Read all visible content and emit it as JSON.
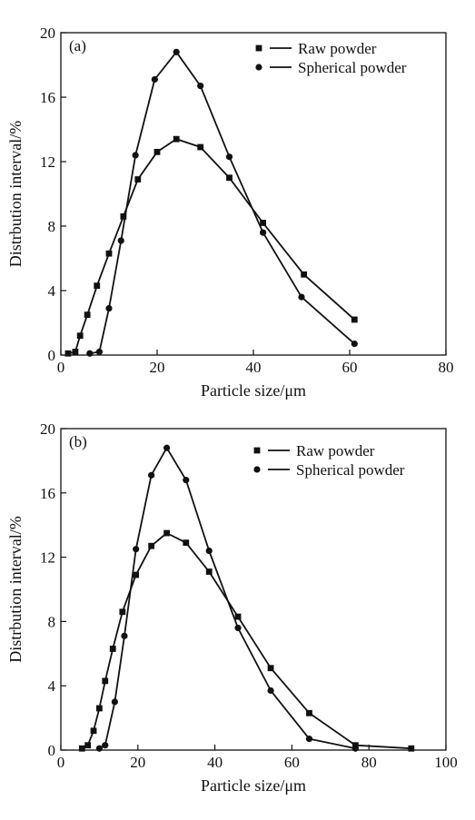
{
  "chart_data": [
    {
      "type": "line",
      "panel_label": "(a)",
      "xlabel": "Particle size/μm",
      "ylabel": "Distrbution interval/%",
      "xlim": [
        0,
        80
      ],
      "ylim": [
        0,
        20
      ],
      "xticks": [
        0,
        20,
        40,
        60,
        80
      ],
      "yticks": [
        0,
        4,
        8,
        12,
        16,
        20
      ],
      "legend": "top-right",
      "grid": false,
      "series": [
        {
          "name": "Raw powder",
          "marker": "square",
          "points": [
            [
              1.5,
              0.1
            ],
            [
              3,
              0.2
            ],
            [
              4,
              1.2
            ],
            [
              5.5,
              2.5
            ],
            [
              7.5,
              4.3
            ],
            [
              10,
              6.3
            ],
            [
              13,
              8.6
            ],
            [
              16,
              10.9
            ],
            [
              20,
              12.6
            ],
            [
              24,
              13.4
            ],
            [
              29,
              12.9
            ],
            [
              35,
              11.0
            ],
            [
              42,
              8.2
            ],
            [
              50.5,
              5.0
            ],
            [
              61,
              2.2
            ]
          ]
        },
        {
          "name": "Spherical powder",
          "marker": "circle",
          "points": [
            [
              6,
              0.1
            ],
            [
              8,
              0.2
            ],
            [
              10,
              2.9
            ],
            [
              12.5,
              7.1
            ],
            [
              15.5,
              12.4
            ],
            [
              19.5,
              17.1
            ],
            [
              24,
              18.8
            ],
            [
              29,
              16.7
            ],
            [
              35,
              12.3
            ],
            [
              42,
              7.6
            ],
            [
              50,
              3.6
            ],
            [
              61,
              0.7
            ]
          ]
        }
      ]
    },
    {
      "type": "line",
      "panel_label": "(b)",
      "xlabel": "Particle size/μm",
      "ylabel": "Distrbution interval/%",
      "xlim": [
        0,
        100
      ],
      "ylim": [
        0,
        20
      ],
      "xticks": [
        0,
        20,
        40,
        60,
        80,
        100
      ],
      "yticks": [
        0,
        4,
        8,
        12,
        16,
        20
      ],
      "legend": "top-right",
      "grid": false,
      "series": [
        {
          "name": "Raw powder",
          "marker": "square",
          "points": [
            [
              5.5,
              0.1
            ],
            [
              7,
              0.3
            ],
            [
              8.5,
              1.2
            ],
            [
              10,
              2.6
            ],
            [
              11.5,
              4.3
            ],
            [
              13.5,
              6.3
            ],
            [
              16,
              8.6
            ],
            [
              19.5,
              10.9
            ],
            [
              23.5,
              12.7
            ],
            [
              27.5,
              13.5
            ],
            [
              32.5,
              12.9
            ],
            [
              38.5,
              11.1
            ],
            [
              46,
              8.3
            ],
            [
              54.5,
              5.1
            ],
            [
              64.5,
              2.3
            ],
            [
              76.5,
              0.3
            ],
            [
              91,
              0.1
            ]
          ]
        },
        {
          "name": "Spherical powder",
          "marker": "circle",
          "points": [
            [
              10,
              0.1
            ],
            [
              11.5,
              0.3
            ],
            [
              14,
              3.0
            ],
            [
              16.5,
              7.1
            ],
            [
              19.5,
              12.5
            ],
            [
              23.5,
              17.1
            ],
            [
              27.5,
              18.8
            ],
            [
              32.5,
              16.8
            ],
            [
              38.5,
              12.4
            ],
            [
              46,
              7.6
            ],
            [
              54.5,
              3.7
            ],
            [
              64.5,
              0.7
            ],
            [
              76.5,
              0.1
            ]
          ]
        }
      ]
    }
  ]
}
